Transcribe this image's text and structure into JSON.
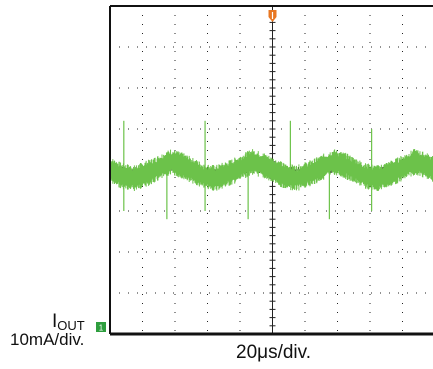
{
  "channel": {
    "label_main": "I",
    "label_sub": "OUT",
    "scale": "10mA/div.",
    "marker_text": "1",
    "trace_color": "#6cc24a",
    "marker_color": "#2e9e3e"
  },
  "timebase": {
    "scale": "20μs/div.",
    "trigger_color": "#e87722"
  },
  "chart_data": {
    "type": "line",
    "title": "",
    "xlabel": "20μs/div.",
    "ylabel": "IOUT 10mA/div.",
    "xlim": [
      0,
      400
    ],
    "ylim": [
      -40,
      40
    ],
    "grid": true,
    "x_units": "μs",
    "y_units": "mA",
    "series": [
      {
        "name": "IOUT",
        "ripple_period_us": 100,
        "ripple_amplitude_mApp": 4,
        "x": [
          0,
          15,
          30,
          50,
          75,
          90,
          100,
          115,
          130,
          150,
          175,
          190,
          200,
          215,
          230,
          250,
          275,
          290,
          300,
          315,
          330,
          350
        ],
        "values": [
          0,
          -1.5,
          -2,
          -0.5,
          2,
          1,
          0,
          -1.5,
          -2,
          -0.5,
          2,
          1,
          0,
          -1.5,
          -2,
          -0.5,
          2,
          1,
          0,
          -1.5,
          -2,
          -0.5
        ],
        "spikes": [
          {
            "x": 17,
            "up": 12,
            "down": -10
          },
          {
            "x": 70,
            "down": -12
          },
          {
            "x": 117,
            "up": 12,
            "down": -10
          },
          {
            "x": 170,
            "down": -12
          },
          {
            "x": 222,
            "up": 12
          },
          {
            "x": 270,
            "down": -12
          },
          {
            "x": 322,
            "up": 10,
            "down": -10
          }
        ]
      }
    ]
  }
}
